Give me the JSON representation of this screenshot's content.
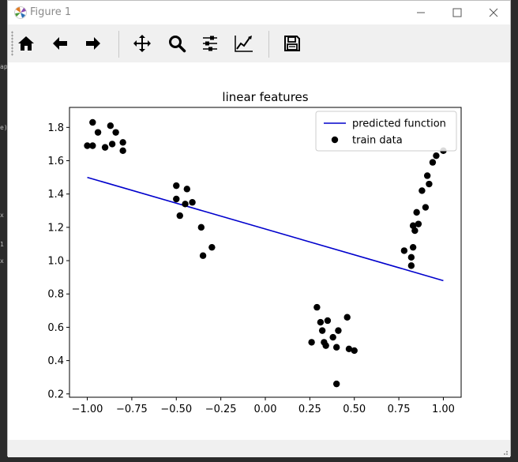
{
  "window": {
    "title": "Figure 1",
    "controls": [
      "minimize",
      "maximize",
      "close"
    ]
  },
  "toolbar": {
    "buttons": [
      {
        "name": "home-icon",
        "label": "Home"
      },
      {
        "name": "arrow-left-icon",
        "label": "Back"
      },
      {
        "name": "arrow-right-icon",
        "label": "Forward"
      },
      {
        "name": "move-icon",
        "label": "Pan"
      },
      {
        "name": "magnifier-icon",
        "label": "Zoom"
      },
      {
        "name": "sliders-icon",
        "label": "Subplots"
      },
      {
        "name": "chart-edit-icon",
        "label": "Customize"
      },
      {
        "name": "save-icon",
        "label": "Save"
      }
    ]
  },
  "side_marks": [
    "ap",
    "e)",
    "x",
    "1",
    "x"
  ],
  "colors": {
    "line": "#0000cc",
    "points": "#000000",
    "toolbar_bg": "#f0f0f0"
  },
  "chart_data": {
    "type": "scatter",
    "title": "linear features",
    "xlim": [
      -1.1,
      1.1
    ],
    "ylim": [
      0.18,
      1.92
    ],
    "xticks": [
      "−1.00",
      "−0.75",
      "−0.50",
      "−0.25",
      "0.00",
      "0.25",
      "0.50",
      "0.75",
      "1.00"
    ],
    "xtick_values": [
      -1.0,
      -0.75,
      -0.5,
      -0.25,
      0.0,
      0.25,
      0.5,
      0.75,
      1.0
    ],
    "yticks": [
      "0.2",
      "0.4",
      "0.6",
      "0.8",
      "1.0",
      "1.2",
      "1.4",
      "1.6",
      "1.8"
    ],
    "ytick_values": [
      0.2,
      0.4,
      0.6,
      0.8,
      1.0,
      1.2,
      1.4,
      1.6,
      1.8
    ],
    "legend_position": "upper right",
    "series": [
      {
        "name": "predicted function",
        "kind": "line",
        "color": "#0000cc",
        "x": [
          -1.0,
          1.0
        ],
        "y": [
          1.5,
          0.88
        ]
      },
      {
        "name": "train data",
        "kind": "scatter",
        "color": "#000000",
        "x": [
          -1.0,
          -0.97,
          -0.97,
          -0.94,
          -0.9,
          -0.87,
          -0.86,
          -0.84,
          -0.8,
          -0.8,
          -0.5,
          -0.5,
          -0.48,
          -0.45,
          -0.44,
          -0.41,
          -0.36,
          -0.35,
          -0.3,
          0.26,
          0.29,
          0.31,
          0.32,
          0.33,
          0.34,
          0.35,
          0.38,
          0.4,
          0.41,
          0.46,
          0.47,
          0.5,
          0.4,
          0.78,
          0.82,
          0.82,
          0.83,
          0.83,
          0.84,
          0.85,
          0.86,
          0.88,
          0.9,
          0.91,
          0.92,
          0.94,
          0.96,
          1.0
        ],
        "y": [
          1.69,
          1.83,
          1.69,
          1.77,
          1.68,
          1.81,
          1.7,
          1.77,
          1.71,
          1.66,
          1.45,
          1.37,
          1.27,
          1.34,
          1.43,
          1.35,
          1.2,
          1.03,
          1.08,
          0.51,
          0.72,
          0.63,
          0.58,
          0.51,
          0.49,
          0.64,
          0.54,
          0.48,
          0.58,
          0.66,
          0.47,
          0.46,
          0.26,
          1.06,
          0.97,
          1.02,
          1.08,
          1.21,
          1.18,
          1.29,
          1.22,
          1.42,
          1.32,
          1.51,
          1.46,
          1.59,
          1.63,
          1.66
        ]
      }
    ]
  }
}
